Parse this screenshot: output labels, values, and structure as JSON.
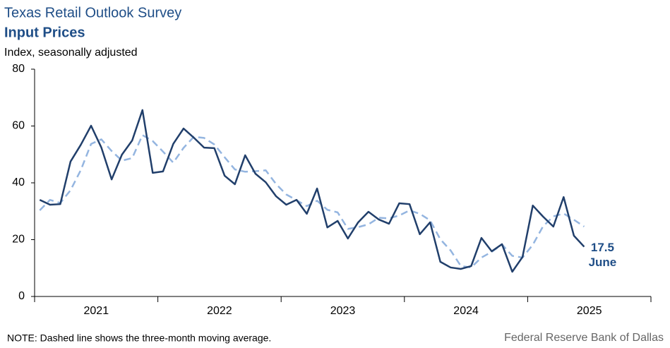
{
  "chart_data": {
    "type": "line",
    "title": "Texas Retail Outlook Survey",
    "subtitle": "Input Prices",
    "y_label": "Index, seasonally adjusted",
    "note": "NOTE: Dashed line shows the three-month  moving average.",
    "source": "Federal Reserve Bank of Dallas",
    "last_label": "June",
    "x": [
      "2021-01",
      "2021-02",
      "2021-03",
      "2021-04",
      "2021-05",
      "2021-06",
      "2021-07",
      "2021-08",
      "2021-09",
      "2021-10",
      "2021-11",
      "2021-12",
      "2022-01",
      "2022-02",
      "2022-03",
      "2022-04",
      "2022-05",
      "2022-06",
      "2022-07",
      "2022-08",
      "2022-09",
      "2022-10",
      "2022-11",
      "2022-12",
      "2023-01",
      "2023-02",
      "2023-03",
      "2023-04",
      "2023-05",
      "2023-06",
      "2023-07",
      "2023-08",
      "2023-09",
      "2023-10",
      "2023-11",
      "2023-12",
      "2024-01",
      "2024-02",
      "2024-03",
      "2024-04",
      "2024-05",
      "2024-06",
      "2024-07",
      "2024-08",
      "2024-09",
      "2024-10",
      "2024-11",
      "2024-12",
      "2025-01",
      "2025-02",
      "2025-03",
      "2025-04",
      "2025-05",
      "2025-06"
    ],
    "xlim": [
      "2021-01",
      "2025-12"
    ],
    "xticks": [
      "2021",
      "2022",
      "2023",
      "2024",
      "2025"
    ],
    "ylim": [
      0,
      80
    ],
    "yticks": [
      0,
      20,
      40,
      60,
      80
    ],
    "grid": false,
    "series": [
      {
        "name": "Input Prices",
        "color": "#213f6b",
        "dash": false,
        "values": [
          34.0,
          32.3,
          32.5,
          47.5,
          53.4,
          60.1,
          52.4,
          41.2,
          49.9,
          54.9,
          65.6,
          43.5,
          44.0,
          53.7,
          59.1,
          55.9,
          52.4,
          52.2,
          42.5,
          39.5,
          49.7,
          43.2,
          40.2,
          35.3,
          32.3,
          34.0,
          29.1,
          38.0,
          24.3,
          26.6,
          20.4,
          26.1,
          29.8,
          27.1,
          25.6,
          32.8,
          32.5,
          21.9,
          26.1,
          12.2,
          10.2,
          9.7,
          10.7,
          20.6,
          15.9,
          18.4,
          8.7,
          13.9,
          32.0,
          28.1,
          24.6,
          35.0,
          21.4,
          17.5
        ]
      },
      {
        "name": "Three-month moving average",
        "color": "#94b5e0",
        "dash": true,
        "values": [
          30.3,
          34.0,
          32.9,
          37.4,
          44.5,
          53.7,
          55.3,
          51.2,
          47.8,
          48.7,
          56.8,
          54.7,
          51.0,
          47.1,
          52.3,
          56.2,
          55.8,
          53.5,
          49.0,
          44.7,
          43.9,
          44.1,
          44.4,
          39.6,
          35.9,
          33.9,
          31.8,
          33.7,
          30.5,
          29.6,
          23.8,
          24.4,
          25.4,
          27.7,
          27.5,
          28.5,
          30.3,
          29.1,
          26.8,
          20.1,
          16.2,
          10.7,
          10.2,
          13.7,
          15.7,
          18.3,
          14.3,
          13.7,
          18.2,
          24.7,
          28.2,
          29.2,
          27.0,
          24.6
        ]
      }
    ]
  }
}
